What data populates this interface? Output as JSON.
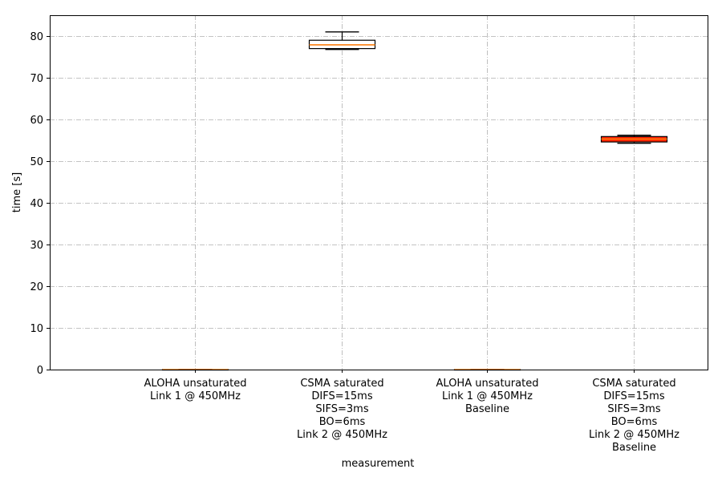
{
  "chart_data": {
    "type": "box",
    "xlabel": "measurement",
    "ylabel": "time [s]",
    "ylim": [
      0,
      85
    ],
    "yticks": [
      0,
      10,
      20,
      30,
      40,
      50,
      60,
      70,
      80
    ],
    "grid": true,
    "categories": [
      {
        "lines": [
          "",
          "ALOHA unsaturated",
          "Link 1 @ 450MHz"
        ],
        "box": {
          "whisker_low": 0,
          "q1": 0,
          "median": 0,
          "q3": 0,
          "whisker_high": 0
        },
        "fill": "#ffffff",
        "median_color": "#ff7f0e"
      },
      {
        "lines": [
          "CSMA saturated",
          "DIFS=15ms",
          "SIFS=3ms",
          "BO=6ms",
          "Link 2 @ 450MHz"
        ],
        "box": {
          "whisker_low": 76.8,
          "q1": 77.0,
          "median": 77.9,
          "q3": 79.0,
          "whisker_high": 81.0
        },
        "fill": "#ffffff",
        "median_color": "#ff7f0e"
      },
      {
        "lines": [
          "ALOHA unsaturated",
          "Link 1 @ 450MHz",
          " Baseline"
        ],
        "box": {
          "whisker_low": 0,
          "q1": 0,
          "median": 0,
          "q3": 0,
          "whisker_high": 0
        },
        "fill": "#ffffff",
        "median_color": "#ff7f0e"
      },
      {
        "lines": [
          "CSMA saturated",
          "DIFS=15ms",
          "SIFS=3ms",
          "BO=6ms",
          "Link 2 @ 450MHz",
          " Baseline"
        ],
        "box": {
          "whisker_low": 54.3,
          "q1": 54.6,
          "median": 55.3,
          "q3": 55.9,
          "whisker_high": 56.2
        },
        "fill": "#ff2200",
        "median_color": "#ff7f0e"
      }
    ]
  }
}
